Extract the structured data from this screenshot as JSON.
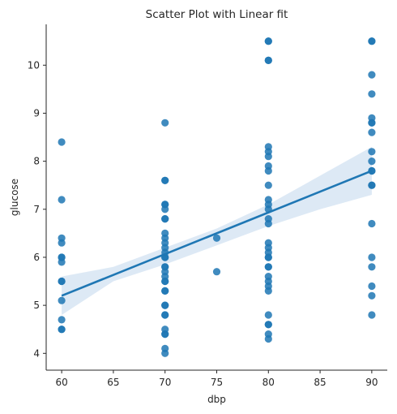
{
  "chart_data": {
    "type": "scatter",
    "title": "Scatter Plot with Linear fit",
    "xlabel": "dbp",
    "ylabel": "glucose",
    "xlim": [
      58.5,
      91.5
    ],
    "ylim": [
      3.65,
      10.85
    ],
    "xticks": [
      60,
      65,
      70,
      75,
      80,
      85,
      90
    ],
    "yticks": [
      4,
      5,
      6,
      7,
      8,
      9,
      10
    ],
    "grid": false,
    "colors": {
      "points": "#1f77b4",
      "fit_line": "#1f77b4",
      "confidence_band": "#c6dbef",
      "axis": "#262626"
    },
    "series": [
      {
        "points": [
          [
            60,
            8.4
          ],
          [
            60,
            7.2
          ],
          [
            60,
            6.4
          ],
          [
            60,
            6.3
          ],
          [
            60,
            6.0
          ],
          [
            60,
            6.0
          ],
          [
            60,
            5.9
          ],
          [
            60,
            5.5
          ],
          [
            60,
            5.5
          ],
          [
            60,
            5.1
          ],
          [
            60,
            4.7
          ],
          [
            60,
            4.5
          ],
          [
            60,
            4.5
          ],
          [
            70,
            8.8
          ],
          [
            70,
            7.6
          ],
          [
            70,
            7.6
          ],
          [
            70,
            7.1
          ],
          [
            70,
            7.1
          ],
          [
            70,
            7.0
          ],
          [
            70,
            6.8
          ],
          [
            70,
            6.8
          ],
          [
            70,
            6.5
          ],
          [
            70,
            6.4
          ],
          [
            70,
            6.3
          ],
          [
            70,
            6.2
          ],
          [
            70,
            6.1
          ],
          [
            70,
            6.0
          ],
          [
            70,
            6.0
          ],
          [
            70,
            5.8
          ],
          [
            70,
            5.8
          ],
          [
            70,
            5.7
          ],
          [
            70,
            5.6
          ],
          [
            70,
            5.5
          ],
          [
            70,
            5.5
          ],
          [
            70,
            5.3
          ],
          [
            70,
            5.3
          ],
          [
            70,
            5.0
          ],
          [
            70,
            5.0
          ],
          [
            70,
            4.8
          ],
          [
            70,
            4.8
          ],
          [
            70,
            4.5
          ],
          [
            70,
            4.4
          ],
          [
            70,
            4.4
          ],
          [
            70,
            4.1
          ],
          [
            70,
            4.0
          ],
          [
            75,
            6.4
          ],
          [
            75,
            5.7
          ],
          [
            80,
            10.5
          ],
          [
            80,
            10.5
          ],
          [
            80,
            10.1
          ],
          [
            80,
            10.1
          ],
          [
            80,
            8.3
          ],
          [
            80,
            8.2
          ],
          [
            80,
            8.1
          ],
          [
            80,
            7.9
          ],
          [
            80,
            7.8
          ],
          [
            80,
            7.5
          ],
          [
            80,
            7.2
          ],
          [
            80,
            7.1
          ],
          [
            80,
            7.0
          ],
          [
            80,
            6.8
          ],
          [
            80,
            6.7
          ],
          [
            80,
            6.3
          ],
          [
            80,
            6.2
          ],
          [
            80,
            6.1
          ],
          [
            80,
            6.0
          ],
          [
            80,
            6.0
          ],
          [
            80,
            5.8
          ],
          [
            80,
            5.8
          ],
          [
            80,
            5.6
          ],
          [
            80,
            5.5
          ],
          [
            80,
            5.4
          ],
          [
            80,
            5.3
          ],
          [
            80,
            4.8
          ],
          [
            80,
            4.6
          ],
          [
            80,
            4.6
          ],
          [
            80,
            4.4
          ],
          [
            80,
            4.3
          ],
          [
            90,
            10.5
          ],
          [
            90,
            10.5
          ],
          [
            90,
            9.8
          ],
          [
            90,
            9.4
          ],
          [
            90,
            8.9
          ],
          [
            90,
            8.8
          ],
          [
            90,
            8.8
          ],
          [
            90,
            8.6
          ],
          [
            90,
            8.2
          ],
          [
            90,
            8.0
          ],
          [
            90,
            7.8
          ],
          [
            90,
            7.8
          ],
          [
            90,
            7.5
          ],
          [
            90,
            7.5
          ],
          [
            90,
            6.7
          ],
          [
            90,
            6.0
          ],
          [
            90,
            5.8
          ],
          [
            90,
            5.4
          ],
          [
            90,
            5.2
          ],
          [
            90,
            4.8
          ]
        ]
      }
    ],
    "fit_line": {
      "x": [
        60,
        90
      ],
      "y": [
        5.2,
        7.8
      ]
    },
    "confidence_band": {
      "x": [
        60,
        65,
        70,
        75,
        80,
        85,
        90
      ],
      "lower": [
        4.8,
        5.5,
        5.85,
        6.25,
        6.65,
        7.0,
        7.3
      ],
      "upper": [
        5.6,
        5.8,
        6.2,
        6.6,
        7.1,
        7.7,
        8.3
      ]
    }
  }
}
